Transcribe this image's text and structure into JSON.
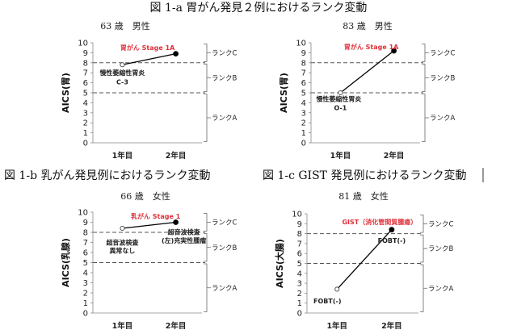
{
  "figure_titles": {
    "fig_1a": "図 1-a 胃がん発見２例におけるランク変動",
    "fig_1b": "図 1-b 乳がん発見例におけるランク変動",
    "fig_1c": "図 1-c GIST 発見例におけるランク変動"
  },
  "colors": {
    "line": "#000000",
    "highlight": "#e0303a",
    "dashed": "#555555"
  },
  "chart_data": [
    {
      "type": "line",
      "subtitle": "63 歳　男性",
      "ylabel": "AICS(胃)",
      "categories": [
        "1年目",
        "2年目"
      ],
      "values": [
        7.8,
        8.9
      ],
      "ylim": [
        0,
        10
      ],
      "yticks": [
        0,
        1,
        2,
        3,
        4,
        5,
        6,
        7,
        8,
        9,
        10
      ],
      "thresholds": [
        5,
        8
      ],
      "ranks": [
        {
          "label": "ランクC",
          "range": [
            8,
            10
          ]
        },
        {
          "label": "ランクB",
          "range": [
            5,
            8
          ]
        },
        {
          "label": "ランクA",
          "range": [
            0,
            5
          ]
        }
      ],
      "annotations": [
        {
          "text": "胃がん Stage 1A",
          "color": "#e0303a"
        },
        {
          "text": "慢性萎縮性胃炎",
          "color": "#222222"
        },
        {
          "text": "C-3",
          "color": "#222222"
        }
      ]
    },
    {
      "type": "line",
      "subtitle": "83 歳　男性",
      "ylabel": "AICS(胃)",
      "categories": [
        "1年目",
        "2年目"
      ],
      "values": [
        5.0,
        9.2
      ],
      "ylim": [
        0,
        10
      ],
      "yticks": [
        0,
        1,
        2,
        3,
        4,
        5,
        6,
        7,
        8,
        9,
        10
      ],
      "thresholds": [
        5,
        8
      ],
      "ranks": [
        {
          "label": "ランクC",
          "range": [
            8,
            10
          ]
        },
        {
          "label": "ランクB",
          "range": [
            5,
            8
          ]
        },
        {
          "label": "ランクA",
          "range": [
            0,
            5
          ]
        }
      ],
      "annotations": [
        {
          "text": "胃がん Stage 1A",
          "color": "#e0303a"
        },
        {
          "text": "慢性萎縮性胃炎",
          "color": "#222222"
        },
        {
          "text": "O-1",
          "color": "#222222"
        }
      ]
    },
    {
      "type": "line",
      "subtitle": "66 歳　女性",
      "ylabel": "AICS(乳腺)",
      "categories": [
        "1年目",
        "2年目"
      ],
      "values": [
        8.4,
        9.0
      ],
      "ylim": [
        0,
        10
      ],
      "yticks": [
        0,
        1,
        2,
        3,
        4,
        5,
        6,
        7,
        8,
        9,
        10
      ],
      "thresholds": [
        5,
        8
      ],
      "ranks": [
        {
          "label": "ランクC",
          "range": [
            8,
            10
          ]
        },
        {
          "label": "ランクB",
          "range": [
            5,
            8
          ]
        },
        {
          "label": "ランクA",
          "range": [
            0,
            5
          ]
        }
      ],
      "annotations": [
        {
          "text": "乳がん Stage 1",
          "color": "#e0303a"
        },
        {
          "text": "超音波検査",
          "color": "#222222"
        },
        {
          "text": "(左)充実性腫瘤",
          "color": "#222222"
        },
        {
          "text": "超音波検査",
          "color": "#222222"
        },
        {
          "text": "異常なし",
          "color": "#222222"
        }
      ]
    },
    {
      "type": "line",
      "subtitle": "81 歳　女性",
      "ylabel": "AICS(大腸)",
      "categories": [
        "1年目",
        "2年目"
      ],
      "values": [
        2.4,
        8.4
      ],
      "ylim": [
        0,
        10
      ],
      "yticks": [
        0,
        1,
        2,
        3,
        4,
        5,
        6,
        7,
        8,
        9,
        10
      ],
      "thresholds": [
        5,
        8
      ],
      "ranks": [
        {
          "label": "ランクC",
          "range": [
            8,
            10
          ]
        },
        {
          "label": "ランクB",
          "range": [
            5,
            8
          ]
        },
        {
          "label": "ランクA",
          "range": [
            0,
            5
          ]
        }
      ],
      "annotations": [
        {
          "text": "GIST（消化管間質腫瘍）",
          "color": "#e0303a"
        },
        {
          "text": "FOBT(-)",
          "color": "#222222"
        },
        {
          "text": "FOBT(-)",
          "color": "#222222"
        }
      ]
    }
  ]
}
